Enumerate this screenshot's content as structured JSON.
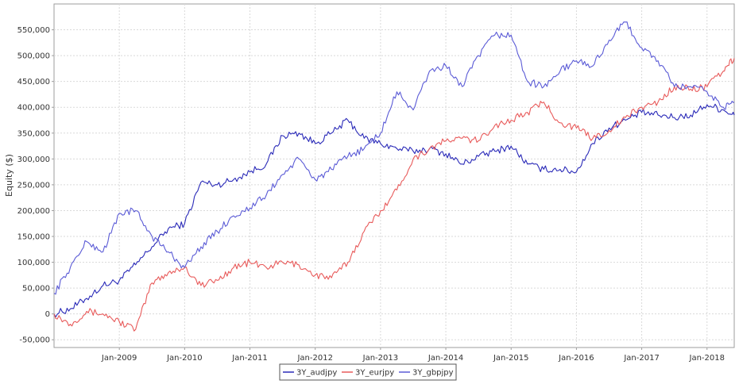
{
  "chart_data": {
    "type": "line",
    "title": "",
    "xlabel": "",
    "ylabel": "Equity ($)",
    "xlim": [
      "2008-01",
      "2018-06"
    ],
    "ylim": [
      -65000,
      600000
    ],
    "y_ticks": [
      -50000,
      0,
      50000,
      100000,
      150000,
      200000,
      250000,
      300000,
      350000,
      400000,
      450000,
      500000,
      550000
    ],
    "y_tick_labels": [
      "-50,000",
      "0",
      "50,000",
      "100,000",
      "150,000",
      "200,000",
      "250,000",
      "300,000",
      "350,000",
      "400,000",
      "450,000",
      "500,000",
      "550,000"
    ],
    "x_ticks": [
      "2009-01",
      "2010-01",
      "2011-01",
      "2012-01",
      "2013-01",
      "2014-01",
      "2015-01",
      "2016-01",
      "2017-01",
      "2018-01"
    ],
    "x_tick_labels": [
      "Jan-2009",
      "Jan-2010",
      "Jan-2011",
      "Jan-2012",
      "Jan-2013",
      "Jan-2014",
      "Jan-2015",
      "Jan-2016",
      "Jan-2017",
      "Jan-2018"
    ],
    "grid": true,
    "legend_position": "bottom-center",
    "series": [
      {
        "name": "3Y_audjpy",
        "color": "#2a2ab8",
        "points": [
          [
            "2008-01",
            0
          ],
          [
            "2008-04",
            10000
          ],
          [
            "2008-07",
            30000
          ],
          [
            "2008-10",
            55000
          ],
          [
            "2009-01",
            65000
          ],
          [
            "2009-04",
            95000
          ],
          [
            "2009-07",
            130000
          ],
          [
            "2009-10",
            165000
          ],
          [
            "2010-01",
            175000
          ],
          [
            "2010-04",
            255000
          ],
          [
            "2010-07",
            250000
          ],
          [
            "2010-10",
            260000
          ],
          [
            "2011-01",
            275000
          ],
          [
            "2011-04",
            290000
          ],
          [
            "2011-07",
            345000
          ],
          [
            "2011-10",
            350000
          ],
          [
            "2012-01",
            330000
          ],
          [
            "2012-04",
            350000
          ],
          [
            "2012-07",
            375000
          ],
          [
            "2012-10",
            340000
          ],
          [
            "2013-01",
            330000
          ],
          [
            "2013-04",
            320000
          ],
          [
            "2013-07",
            315000
          ],
          [
            "2013-10",
            320000
          ],
          [
            "2014-01",
            310000
          ],
          [
            "2014-04",
            290000
          ],
          [
            "2014-07",
            305000
          ],
          [
            "2014-10",
            315000
          ],
          [
            "2015-01",
            325000
          ],
          [
            "2015-04",
            290000
          ],
          [
            "2015-07",
            280000
          ],
          [
            "2015-10",
            280000
          ],
          [
            "2016-01",
            275000
          ],
          [
            "2016-04",
            330000
          ],
          [
            "2016-07",
            360000
          ],
          [
            "2016-10",
            375000
          ],
          [
            "2017-01",
            390000
          ],
          [
            "2017-04",
            385000
          ],
          [
            "2017-07",
            380000
          ],
          [
            "2017-10",
            385000
          ],
          [
            "2018-01",
            405000
          ],
          [
            "2018-04",
            395000
          ],
          [
            "2018-06",
            385000
          ]
        ]
      },
      {
        "name": "3Y_eurjpy",
        "color": "#e85a5a",
        "points": [
          [
            "2008-01",
            0
          ],
          [
            "2008-04",
            -20000
          ],
          [
            "2008-07",
            5000
          ],
          [
            "2008-10",
            0
          ],
          [
            "2009-01",
            -15000
          ],
          [
            "2009-04",
            -30000
          ],
          [
            "2009-07",
            60000
          ],
          [
            "2009-10",
            80000
          ],
          [
            "2010-01",
            90000
          ],
          [
            "2010-04",
            55000
          ],
          [
            "2010-07",
            65000
          ],
          [
            "2010-10",
            90000
          ],
          [
            "2011-01",
            100000
          ],
          [
            "2011-04",
            90000
          ],
          [
            "2011-07",
            100000
          ],
          [
            "2011-10",
            95000
          ],
          [
            "2012-01",
            75000
          ],
          [
            "2012-04",
            70000
          ],
          [
            "2012-07",
            100000
          ],
          [
            "2012-10",
            160000
          ],
          [
            "2013-01",
            200000
          ],
          [
            "2013-04",
            240000
          ],
          [
            "2013-07",
            300000
          ],
          [
            "2013-10",
            320000
          ],
          [
            "2014-01",
            335000
          ],
          [
            "2014-04",
            340000
          ],
          [
            "2014-07",
            335000
          ],
          [
            "2014-10",
            365000
          ],
          [
            "2015-01",
            375000
          ],
          [
            "2015-04",
            390000
          ],
          [
            "2015-07",
            410000
          ],
          [
            "2015-10",
            370000
          ],
          [
            "2016-01",
            360000
          ],
          [
            "2016-04",
            340000
          ],
          [
            "2016-07",
            355000
          ],
          [
            "2016-10",
            380000
          ],
          [
            "2017-01",
            400000
          ],
          [
            "2017-04",
            410000
          ],
          [
            "2017-07",
            440000
          ],
          [
            "2017-10",
            435000
          ],
          [
            "2018-01",
            440000
          ],
          [
            "2018-04",
            470000
          ],
          [
            "2018-06",
            495000
          ]
        ]
      },
      {
        "name": "3Y_gbpjpy",
        "color": "#5b5bd6",
        "points": [
          [
            "2008-01",
            40000
          ],
          [
            "2008-04",
            90000
          ],
          [
            "2008-07",
            140000
          ],
          [
            "2008-10",
            120000
          ],
          [
            "2009-01",
            195000
          ],
          [
            "2009-04",
            200000
          ],
          [
            "2009-07",
            150000
          ],
          [
            "2009-10",
            120000
          ],
          [
            "2010-01",
            90000
          ],
          [
            "2010-04",
            130000
          ],
          [
            "2010-07",
            160000
          ],
          [
            "2010-10",
            190000
          ],
          [
            "2011-01",
            205000
          ],
          [
            "2011-04",
            230000
          ],
          [
            "2011-07",
            270000
          ],
          [
            "2011-10",
            300000
          ],
          [
            "2012-01",
            260000
          ],
          [
            "2012-04",
            280000
          ],
          [
            "2012-07",
            305000
          ],
          [
            "2012-10",
            320000
          ],
          [
            "2013-01",
            350000
          ],
          [
            "2013-04",
            430000
          ],
          [
            "2013-07",
            395000
          ],
          [
            "2013-10",
            470000
          ],
          [
            "2014-01",
            480000
          ],
          [
            "2014-04",
            440000
          ],
          [
            "2014-07",
            500000
          ],
          [
            "2014-10",
            540000
          ],
          [
            "2015-01",
            540000
          ],
          [
            "2015-04",
            450000
          ],
          [
            "2015-07",
            440000
          ],
          [
            "2015-10",
            470000
          ],
          [
            "2016-01",
            490000
          ],
          [
            "2016-04",
            480000
          ],
          [
            "2016-07",
            530000
          ],
          [
            "2016-10",
            565000
          ],
          [
            "2017-01",
            515000
          ],
          [
            "2017-04",
            490000
          ],
          [
            "2017-07",
            440000
          ],
          [
            "2017-10",
            440000
          ],
          [
            "2018-01",
            430000
          ],
          [
            "2018-04",
            400000
          ],
          [
            "2018-06",
            410000
          ]
        ]
      }
    ]
  }
}
